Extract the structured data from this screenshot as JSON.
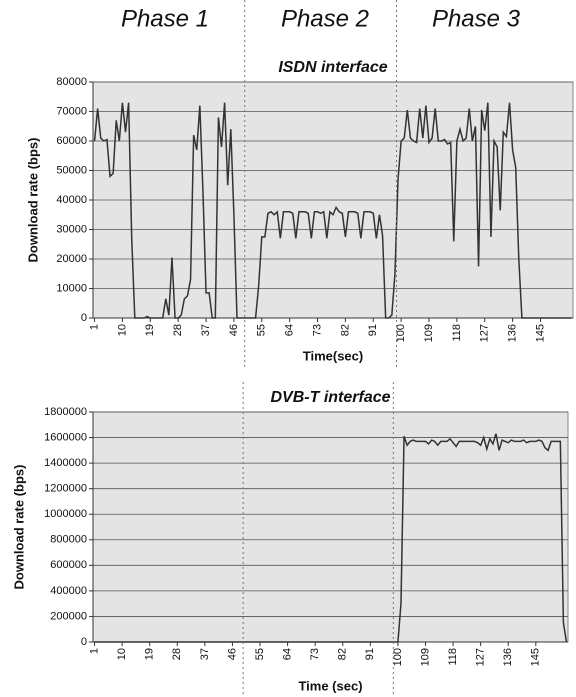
{
  "phases": [
    "Phase 1",
    "Phase 2",
    "Phase 3"
  ],
  "chart_data": [
    {
      "type": "line",
      "title": "ISDN interface",
      "xlabel": "Time(sec)",
      "ylabel": "Download rate (bps)",
      "color": "#333333",
      "grid": true,
      "xlim": [
        0.5,
        155.5
      ],
      "xticks": [
        1,
        10,
        19,
        28,
        37,
        46,
        55,
        64,
        73,
        82,
        91,
        100,
        109,
        118,
        127,
        136,
        145
      ],
      "ylim": [
        0,
        80000
      ],
      "yticks": [
        0,
        10000,
        20000,
        30000,
        40000,
        50000,
        60000,
        70000,
        80000
      ],
      "vlines": [
        49.5,
        98.5
      ],
      "x": [
        1,
        2,
        3,
        4,
        5,
        6,
        7,
        8,
        9,
        10,
        11,
        12,
        13,
        14,
        15,
        16,
        17,
        18,
        19,
        20,
        21,
        22,
        23,
        24,
        25,
        26,
        27,
        28,
        29,
        30,
        31,
        32,
        33,
        34,
        35,
        36,
        37,
        38,
        39,
        40,
        41,
        42,
        43,
        44,
        45,
        46,
        47,
        48,
        49,
        50,
        51,
        52,
        53,
        54,
        55,
        56,
        57,
        58,
        59,
        60,
        61,
        62,
        63,
        64,
        65,
        66,
        67,
        68,
        69,
        70,
        71,
        72,
        73,
        74,
        75,
        76,
        77,
        78,
        79,
        80,
        81,
        82,
        83,
        84,
        85,
        86,
        87,
        88,
        89,
        90,
        91,
        92,
        93,
        94,
        95,
        96,
        97,
        98,
        99,
        100,
        101,
        102,
        103,
        104,
        105,
        106,
        107,
        108,
        109,
        110,
        111,
        112,
        113,
        114,
        115,
        116,
        117,
        118,
        119,
        120,
        121,
        122,
        123,
        124,
        125,
        126,
        127,
        128,
        129,
        130,
        131,
        132,
        133,
        134,
        135,
        136,
        137,
        138,
        139,
        140,
        141,
        142,
        143,
        144,
        145,
        146,
        147,
        148,
        149,
        150,
        151,
        152,
        153,
        154,
        155
      ],
      "values": [
        60000,
        71000,
        61000,
        60000,
        60500,
        48000,
        49000,
        67000,
        60000,
        73000,
        63000,
        73000,
        27000,
        0,
        0,
        0,
        0,
        500,
        0,
        0,
        0,
        0,
        0,
        6500,
        1000,
        20500,
        0,
        0,
        1000,
        6500,
        7500,
        13000,
        62000,
        57000,
        72000,
        43000,
        8500,
        8500,
        0,
        0,
        68000,
        58000,
        73000,
        45000,
        64000,
        35000,
        0,
        0,
        0,
        0,
        0,
        0,
        0,
        11000,
        27500,
        27500,
        35500,
        36000,
        35000,
        36000,
        27000,
        36000,
        36000,
        36000,
        35500,
        27000,
        36000,
        36000,
        36000,
        35500,
        27000,
        36000,
        36000,
        35500,
        36000,
        27000,
        36000,
        35000,
        37500,
        36000,
        35500,
        27500,
        36000,
        36000,
        36000,
        35500,
        27000,
        36000,
        36000,
        36000,
        35500,
        27000,
        35000,
        28000,
        0,
        0,
        1000,
        15000,
        47000,
        60000,
        61000,
        70500,
        61000,
        60000,
        59500,
        71000,
        61000,
        72000,
        59500,
        61000,
        71000,
        60000,
        60000,
        60500,
        59000,
        59500,
        26000,
        60000,
        64000,
        60000,
        61000,
        71000,
        60000,
        65000,
        17500,
        70500,
        63500,
        73000,
        27500,
        60000,
        58000,
        36500,
        63000,
        61500,
        73000,
        57000,
        51000,
        20000,
        0,
        0,
        0,
        0,
        0,
        0,
        0,
        0,
        0,
        0,
        0,
        0,
        0,
        0,
        0,
        0,
        0
      ]
    },
    {
      "type": "line",
      "title": "DVB-T interface",
      "xlabel": "Time (sec)",
      "ylabel": "Download rate (bps)",
      "color": "#333333",
      "grid": true,
      "xlim": [
        0.5,
        155.5
      ],
      "xticks": [
        1,
        10,
        19,
        28,
        37,
        46,
        55,
        64,
        73,
        82,
        91,
        100,
        109,
        118,
        127,
        136,
        145
      ],
      "ylim": [
        0,
        1800000
      ],
      "yticks": [
        0,
        200000,
        400000,
        600000,
        800000,
        1000000,
        1200000,
        1400000,
        1600000,
        1800000
      ],
      "vlines": [
        49.5,
        98.5
      ],
      "x": [
        1,
        2,
        3,
        4,
        5,
        6,
        7,
        8,
        9,
        10,
        11,
        12,
        13,
        14,
        15,
        16,
        17,
        18,
        19,
        20,
        21,
        22,
        23,
        24,
        25,
        26,
        27,
        28,
        29,
        30,
        31,
        32,
        33,
        34,
        35,
        36,
        37,
        38,
        39,
        40,
        41,
        42,
        43,
        44,
        45,
        46,
        47,
        48,
        49,
        50,
        51,
        52,
        53,
        54,
        55,
        56,
        57,
        58,
        59,
        60,
        61,
        62,
        63,
        64,
        65,
        66,
        67,
        68,
        69,
        70,
        71,
        72,
        73,
        74,
        75,
        76,
        77,
        78,
        79,
        80,
        81,
        82,
        83,
        84,
        85,
        86,
        87,
        88,
        89,
        90,
        91,
        92,
        93,
        94,
        95,
        96,
        97,
        98,
        99,
        100,
        101,
        102,
        103,
        104,
        105,
        106,
        107,
        108,
        109,
        110,
        111,
        112,
        113,
        114,
        115,
        116,
        117,
        118,
        119,
        120,
        121,
        122,
        123,
        124,
        125,
        126,
        127,
        128,
        129,
        130,
        131,
        132,
        133,
        134,
        135,
        136,
        137,
        138,
        139,
        140,
        141,
        142,
        143,
        144,
        145,
        146,
        147,
        148,
        149,
        150,
        151,
        152,
        153,
        154,
        155
      ],
      "values": [
        0,
        0,
        0,
        0,
        0,
        0,
        0,
        0,
        0,
        0,
        0,
        0,
        0,
        0,
        0,
        0,
        0,
        0,
        0,
        0,
        0,
        0,
        0,
        0,
        0,
        0,
        0,
        0,
        0,
        0,
        0,
        0,
        0,
        0,
        0,
        0,
        0,
        0,
        0,
        0,
        0,
        0,
        0,
        0,
        0,
        0,
        0,
        0,
        0,
        0,
        0,
        0,
        0,
        0,
        0,
        0,
        0,
        0,
        0,
        0,
        0,
        0,
        0,
        0,
        0,
        0,
        0,
        0,
        0,
        0,
        0,
        0,
        0,
        0,
        0,
        0,
        0,
        0,
        0,
        0,
        0,
        0,
        0,
        0,
        0,
        0,
        0,
        0,
        0,
        0,
        0,
        0,
        0,
        0,
        0,
        0,
        0,
        0,
        0,
        0,
        300000,
        1610000,
        1540000,
        1570000,
        1580000,
        1570000,
        1570000,
        1570000,
        1570000,
        1550000,
        1580000,
        1570000,
        1540000,
        1570000,
        1570000,
        1570000,
        1590000,
        1560000,
        1530000,
        1570000,
        1570000,
        1570000,
        1570000,
        1570000,
        1570000,
        1560000,
        1540000,
        1600000,
        1510000,
        1590000,
        1550000,
        1630000,
        1500000,
        1580000,
        1570000,
        1560000,
        1580000,
        1570000,
        1570000,
        1570000,
        1580000,
        1560000,
        1570000,
        1570000,
        1570000,
        1580000,
        1570000,
        1520000,
        1500000,
        1570000,
        1570000,
        1570000,
        1570000,
        150000,
        0
      ]
    }
  ]
}
